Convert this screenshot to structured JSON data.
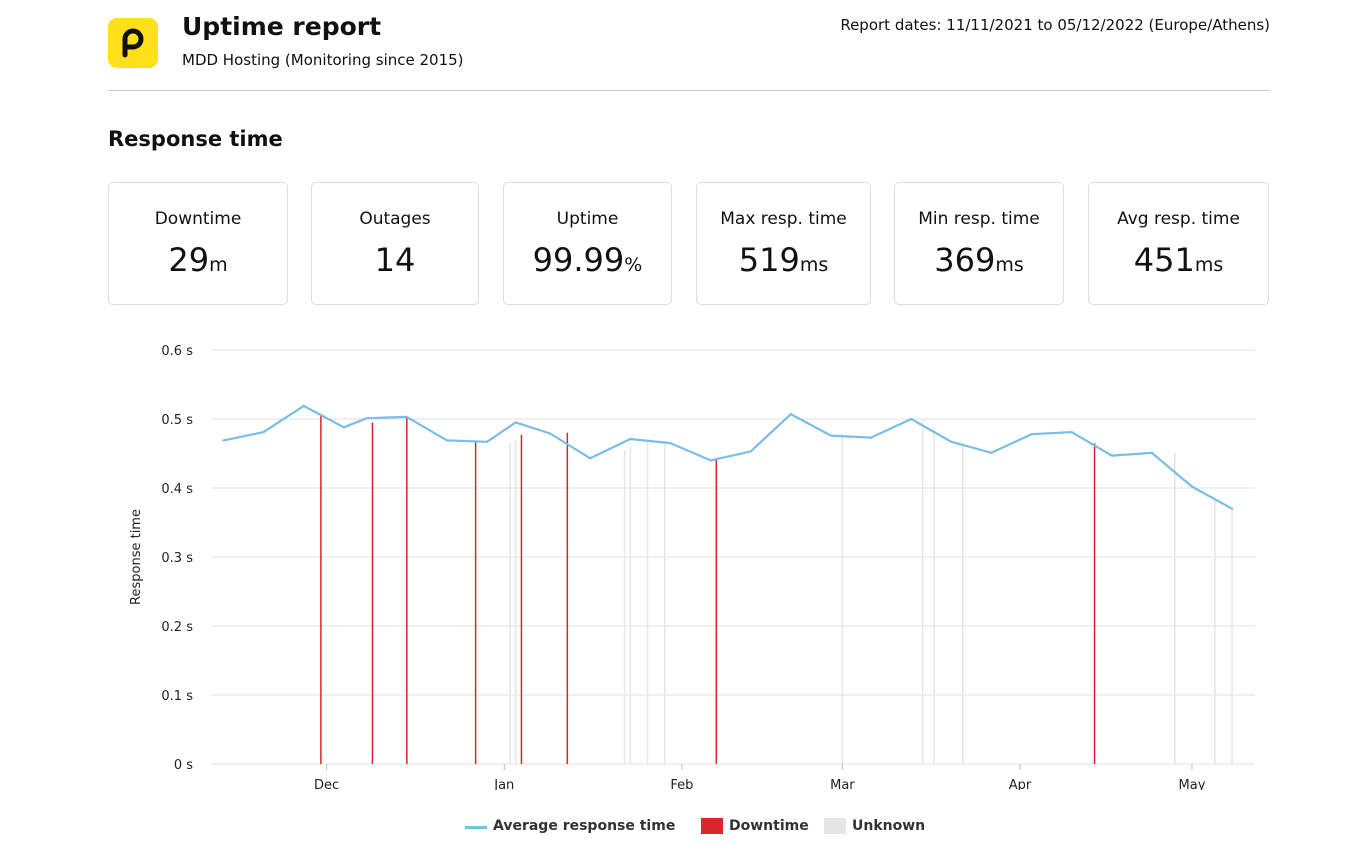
{
  "header": {
    "title": "Uptime report",
    "subtitle": "MDD Hosting (Monitoring since 2015)",
    "report_dates": "Report dates: 11/11/2021 to 05/12/2022 (Europe/Athens)"
  },
  "section_title": "Response time",
  "stats": [
    {
      "label": "Downtime",
      "value": "29",
      "unit": "m"
    },
    {
      "label": "Outages",
      "value": "14",
      "unit": ""
    },
    {
      "label": "Uptime",
      "value": "99.99",
      "unit": "%"
    },
    {
      "label": "Max resp. time",
      "value": "519",
      "unit": "ms"
    },
    {
      "label": "Min resp. time",
      "value": "369",
      "unit": "ms"
    },
    {
      "label": "Avg resp. time",
      "value": "451",
      "unit": "ms"
    }
  ],
  "colors": {
    "brand": "#ffe01b",
    "line": "#7cbde6",
    "downtime": "#d9262b",
    "unknown": "#e6e6e6",
    "grid": "#e0e0e0"
  },
  "chart_data": {
    "type": "line",
    "ylabel": "Response time",
    "xlabel": "",
    "ylim": [
      0,
      0.6
    ],
    "yticks": [
      0,
      0.1,
      0.2,
      0.3,
      0.4,
      0.5,
      0.6
    ],
    "ytick_labels": [
      "0 s",
      "0.1 s",
      "0.2 s",
      "0.3 s",
      "0.4 s",
      "0.5 s",
      "0.6 s"
    ],
    "xlim": [
      "2021-11-11",
      "2022-05-12"
    ],
    "xticks": [
      {
        "date": "2021-12-01",
        "label": "Dec"
      },
      {
        "date": "2022-01-01",
        "label": "Jan"
      },
      {
        "date": "2022-02-01",
        "label": "Feb"
      },
      {
        "date": "2022-03-01",
        "label": "Mar"
      },
      {
        "date": "2022-04-01",
        "label": "Apr"
      },
      {
        "date": "2022-05-01",
        "label": "May"
      }
    ],
    "grid": true,
    "legend_position": "bottom",
    "legend": [
      "Average response time",
      "Downtime",
      "Unknown"
    ],
    "series": [
      {
        "name": "Average response time",
        "x": [
          "2021-11-13",
          "2021-11-20",
          "2021-11-27",
          "2021-12-04",
          "2021-12-08",
          "2021-12-11",
          "2021-12-15",
          "2021-12-22",
          "2021-12-29",
          "2022-01-03",
          "2022-01-09",
          "2022-01-16",
          "2022-01-23",
          "2022-01-30",
          "2022-02-06",
          "2022-02-13",
          "2022-02-20",
          "2022-02-27",
          "2022-03-06",
          "2022-03-13",
          "2022-03-20",
          "2022-03-27",
          "2022-04-03",
          "2022-04-10",
          "2022-04-17",
          "2022-04-24",
          "2022-05-01",
          "2022-05-08"
        ],
        "values": [
          0.469,
          0.481,
          0.519,
          0.488,
          0.501,
          0.502,
          0.503,
          0.469,
          0.467,
          0.495,
          0.479,
          0.443,
          0.471,
          0.465,
          0.44,
          0.453,
          0.507,
          0.476,
          0.473,
          0.5,
          0.467,
          0.451,
          0.478,
          0.481,
          0.447,
          0.451,
          0.402,
          0.37
        ]
      }
    ],
    "downtime": [
      {
        "date": "2021-11-30",
        "value": 0.506
      },
      {
        "date": "2021-12-09",
        "value": 0.495
      },
      {
        "date": "2021-12-15",
        "value": 0.502
      },
      {
        "date": "2021-12-27",
        "value": 0.469
      },
      {
        "date": "2022-01-04",
        "value": 0.477
      },
      {
        "date": "2022-01-12",
        "value": 0.48
      },
      {
        "date": "2022-02-07",
        "value": 0.441
      },
      {
        "date": "2022-04-14",
        "value": 0.465
      }
    ],
    "unknown": [
      {
        "date": "2022-01-02",
        "value": 0.466
      },
      {
        "date": "2022-01-03",
        "value": 0.47
      },
      {
        "date": "2022-01-22",
        "value": 0.455
      },
      {
        "date": "2022-01-23",
        "value": 0.46
      },
      {
        "date": "2022-01-26",
        "value": 0.47
      },
      {
        "date": "2022-01-29",
        "value": 0.467
      },
      {
        "date": "2022-03-01",
        "value": 0.476
      },
      {
        "date": "2022-03-15",
        "value": 0.5
      },
      {
        "date": "2022-03-17",
        "value": 0.488
      },
      {
        "date": "2022-03-22",
        "value": 0.465
      },
      {
        "date": "2022-04-28",
        "value": 0.451
      },
      {
        "date": "2022-05-05",
        "value": 0.385
      },
      {
        "date": "2022-05-08",
        "value": 0.372
      }
    ]
  }
}
